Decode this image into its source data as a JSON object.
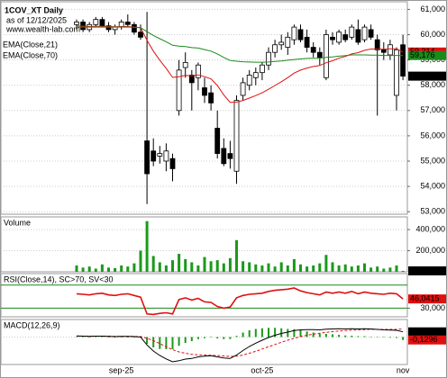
{
  "chart_data": [
    {
      "type": "candlestick",
      "title": "1COV_XT Daily",
      "subtitle": "as of 12/12/2025",
      "annotation": "www.wealth-lab.com",
      "categories": [
        null,
        null,
        null,
        null,
        null,
        null,
        null,
        "sep-25",
        null,
        null,
        null,
        null,
        null,
        null,
        null,
        null,
        null,
        null,
        null,
        null,
        null,
        null,
        null,
        null,
        null,
        null,
        null,
        null,
        null,
        "oct-25",
        null,
        null,
        null,
        null,
        null,
        null,
        null,
        null,
        null,
        null,
        null,
        null,
        null,
        null,
        null,
        null,
        null,
        null,
        null,
        null,
        null,
        "nov"
      ],
      "open": [
        60400,
        60500,
        60200,
        60400,
        60600,
        60350,
        60200,
        60300,
        60500,
        60400,
        60100,
        55800,
        55400,
        55200,
        55000,
        55100,
        57000,
        58700,
        58400,
        58300,
        57900,
        57700,
        56300,
        55500,
        55300,
        54600,
        57600,
        58000,
        58300,
        58500,
        58800,
        59300,
        59600,
        59500,
        59800,
        60200,
        59900,
        59500,
        59300,
        58300,
        59900,
        59700,
        60000,
        59900,
        60200,
        59800,
        60200,
        59800,
        59400,
        59200,
        57600,
        59600
      ],
      "high": [
        60600,
        60600,
        60500,
        60700,
        60700,
        60500,
        60400,
        60600,
        60800,
        60500,
        60400,
        60900,
        55900,
        55600,
        55700,
        55300,
        59000,
        59300,
        58600,
        58900,
        58300,
        58000,
        57000,
        55900,
        55800,
        57600,
        58300,
        58600,
        58700,
        58900,
        59500,
        59800,
        60000,
        60100,
        60400,
        60400,
        60200,
        59700,
        59500,
        60200,
        60100,
        60200,
        60200,
        60400,
        60600,
        60400,
        60400,
        60000,
        59700,
        59800,
        59500,
        60000
      ],
      "low": [
        60200,
        60100,
        60100,
        60300,
        60300,
        60100,
        60000,
        60200,
        60300,
        60000,
        59800,
        53300,
        54800,
        54900,
        54600,
        54200,
        56800,
        58300,
        57000,
        57800,
        57300,
        57000,
        55100,
        54800,
        54700,
        54100,
        57400,
        57800,
        58000,
        58200,
        58600,
        59100,
        59400,
        59200,
        59600,
        59700,
        59300,
        59100,
        58800,
        58200,
        59600,
        59600,
        59700,
        59800,
        59600,
        59700,
        59800,
        56800,
        59000,
        59000,
        57000,
        58200
      ],
      "close": [
        60500,
        60200,
        60400,
        60600,
        60350,
        60200,
        60300,
        60500,
        60400,
        60100,
        59900,
        54500,
        55000,
        55300,
        55400,
        54700,
        58600,
        58900,
        58100,
        58800,
        57600,
        57300,
        55300,
        54900,
        55100,
        57400,
        58100,
        58400,
        58500,
        58800,
        59300,
        59600,
        59700,
        59900,
        60300,
        59800,
        59500,
        59300,
        59100,
        60000,
        59800,
        60100,
        59800,
        60300,
        59700,
        60300,
        59900,
        59400,
        59300,
        59600,
        59400,
        58360
      ],
      "series": [
        {
          "name": "EMA(Close,21)",
          "color": "#e01010",
          "values": [
            60350,
            60340,
            60320,
            60330,
            60330,
            60320,
            60310,
            60320,
            60320,
            60300,
            60270,
            59780,
            59350,
            58990,
            58670,
            58310,
            58340,
            58390,
            58370,
            58410,
            58340,
            58250,
            57990,
            57620,
            57320,
            57330,
            57400,
            57490,
            57590,
            57700,
            57840,
            57990,
            58140,
            58300,
            58480,
            58600,
            58680,
            58740,
            58780,
            58890,
            58970,
            59070,
            59140,
            59240,
            59290,
            59380,
            59430,
            59430,
            59420,
            59440,
            59440,
            59314
          ]
        },
        {
          "name": "EMA(Close,70)",
          "color": "#1a8a1a",
          "values": [
            60300,
            60300,
            60300,
            60300,
            60300,
            60300,
            60300,
            60300,
            60300,
            60290,
            60280,
            60120,
            59970,
            59840,
            59720,
            59580,
            59550,
            59530,
            59490,
            59470,
            59410,
            59350,
            59240,
            59100,
            58980,
            58950,
            58930,
            58920,
            58910,
            58910,
            58920,
            58940,
            58960,
            58990,
            59020,
            59040,
            59060,
            59070,
            59070,
            59100,
            59120,
            59150,
            59170,
            59200,
            59200,
            59200,
            59190,
            59190,
            59180,
            59180,
            59180,
            59176
          ]
        }
      ],
      "ylim": [
        52900,
        61300
      ],
      "yticks": [
        {
          "value": 53000,
          "label": "53,000"
        },
        {
          "value": 54000,
          "label": "54,000"
        },
        {
          "value": 55000,
          "label": "55,000"
        },
        {
          "value": 56000,
          "label": "56,000"
        },
        {
          "value": 57000,
          "label": "57,000"
        },
        {
          "value": 58000,
          "label": "58,000"
        },
        {
          "value": 59000,
          "label": "59,000"
        },
        {
          "value": 60000,
          "label": "60,000"
        },
        {
          "value": 61000,
          "label": "61,000"
        }
      ],
      "last_value_labels": [
        {
          "value": 59314,
          "label": "59,314",
          "color": "#e01010"
        },
        {
          "value": 59176,
          "label": "59,176",
          "color": "#1a8a1a"
        },
        {
          "value": 58360,
          "label": "58,360",
          "color": "#000000"
        }
      ]
    },
    {
      "type": "bar",
      "title": "Volume",
      "color": "#1a9a1a",
      "values": [
        60000,
        40000,
        50000,
        30000,
        70000,
        40000,
        35000,
        60000,
        50000,
        80000,
        200000,
        480000,
        150000,
        90000,
        60000,
        110000,
        170000,
        120000,
        90000,
        60000,
        140000,
        100000,
        110000,
        80000,
        130000,
        300000,
        100000,
        90000,
        70000,
        60000,
        80000,
        50000,
        90000,
        60000,
        120000,
        70000,
        50000,
        60000,
        80000,
        160000,
        90000,
        60000,
        70000,
        50000,
        60000,
        80000,
        40000,
        50000,
        30000,
        40000,
        60000,
        8972
      ],
      "ylim": [
        0,
        520000
      ],
      "yticks": [
        {
          "value": 200000,
          "label": "200,000"
        },
        {
          "value": 400000,
          "label": "400,000"
        }
      ],
      "last_value_labels": [
        {
          "value": 8972,
          "label": "8,972",
          "color": "#000000"
        }
      ]
    },
    {
      "type": "line",
      "title": "RSI(Close,14), SC>70, SV<30",
      "series": [
        {
          "name": "RSI",
          "color": "#e01010",
          "values": [
            55,
            54,
            53,
            55,
            56,
            53,
            52,
            54,
            55,
            52,
            49,
            20,
            19,
            21,
            22,
            20,
            45,
            48,
            44,
            47,
            41,
            40,
            33,
            30,
            32,
            48,
            52,
            54,
            55,
            56,
            59,
            61,
            62,
            63,
            65,
            60,
            57,
            55,
            53,
            58,
            56,
            58,
            56,
            59,
            55,
            58,
            56,
            55,
            54,
            56,
            55,
            46.0415
          ]
        }
      ],
      "ylim": [
        15,
        90
      ],
      "yticks": [
        {
          "value": 30,
          "label": "30,000"
        }
      ],
      "levels": [
        70,
        30
      ],
      "level_color": "#1a8a1a",
      "last_value_labels": [
        {
          "value": 46.0415,
          "label": "46,0415",
          "color": "#e01010"
        }
      ]
    },
    {
      "type": "macd",
      "title": "MACD(12,26,9)",
      "series": [
        {
          "name": "MACD",
          "color": "#000000",
          "values": [
            0.05,
            0.04,
            0.03,
            0.04,
            0.04,
            0.03,
            0.02,
            0.03,
            0.03,
            0.02,
            0,
            -0.35,
            -0.62,
            -0.82,
            -0.97,
            -1.1,
            -1.05,
            -0.98,
            -0.95,
            -0.88,
            -0.85,
            -0.83,
            -0.88,
            -0.93,
            -0.95,
            -0.8,
            -0.6,
            -0.42,
            -0.27,
            -0.14,
            -0.02,
            0.08,
            0.16,
            0.22,
            0.29,
            0.32,
            0.33,
            0.33,
            0.32,
            0.35,
            0.36,
            0.37,
            0.36,
            0.37,
            0.36,
            0.37,
            0.36,
            0.34,
            0.32,
            0.31,
            0.3,
            0.2304
          ]
        },
        {
          "name": "Signal",
          "color": "#e01010",
          "values": [
            0.04,
            0.04,
            0.04,
            0.04,
            0.04,
            0.04,
            0.03,
            0.03,
            0.03,
            0.03,
            0.02,
            -0.05,
            -0.16,
            -0.29,
            -0.43,
            -0.56,
            -0.66,
            -0.72,
            -0.77,
            -0.79,
            -0.8,
            -0.81,
            -0.82,
            -0.84,
            -0.86,
            -0.85,
            -0.8,
            -0.72,
            -0.63,
            -0.53,
            -0.43,
            -0.33,
            -0.23,
            -0.14,
            -0.06,
            0.02,
            0.08,
            0.13,
            0.17,
            0.21,
            0.24,
            0.27,
            0.29,
            0.31,
            0.32,
            0.33,
            0.34,
            0.34,
            0.34,
            0.34,
            0.34,
            0.36
          ]
        },
        {
          "name": "Histogram",
          "color": "#1a9a1a",
          "values": [
            0.01,
            0,
            -0.01,
            0,
            0,
            -0.01,
            -0.01,
            0,
            0,
            -0.01,
            -0.02,
            -0.3,
            -0.46,
            -0.53,
            -0.54,
            -0.54,
            -0.39,
            -0.26,
            -0.18,
            -0.09,
            -0.05,
            -0.02,
            -0.06,
            -0.09,
            -0.09,
            0.05,
            0.2,
            0.3,
            0.36,
            0.39,
            0.41,
            0.41,
            0.39,
            0.36,
            0.35,
            0.3,
            0.25,
            0.2,
            0.15,
            0.14,
            0.12,
            0.1,
            0.07,
            0.06,
            0.04,
            0.04,
            0.02,
            0,
            -0.02,
            -0.03,
            -0.04,
            -0.1296
          ]
        }
      ],
      "ylim": [
        -1.22,
        0.78
      ],
      "last_value_labels": [
        {
          "value": 0.2304,
          "label": "0,2304",
          "color": "#000000"
        },
        {
          "value": -0.1296,
          "label": "-0,1296",
          "color": "#e01010"
        }
      ]
    }
  ]
}
